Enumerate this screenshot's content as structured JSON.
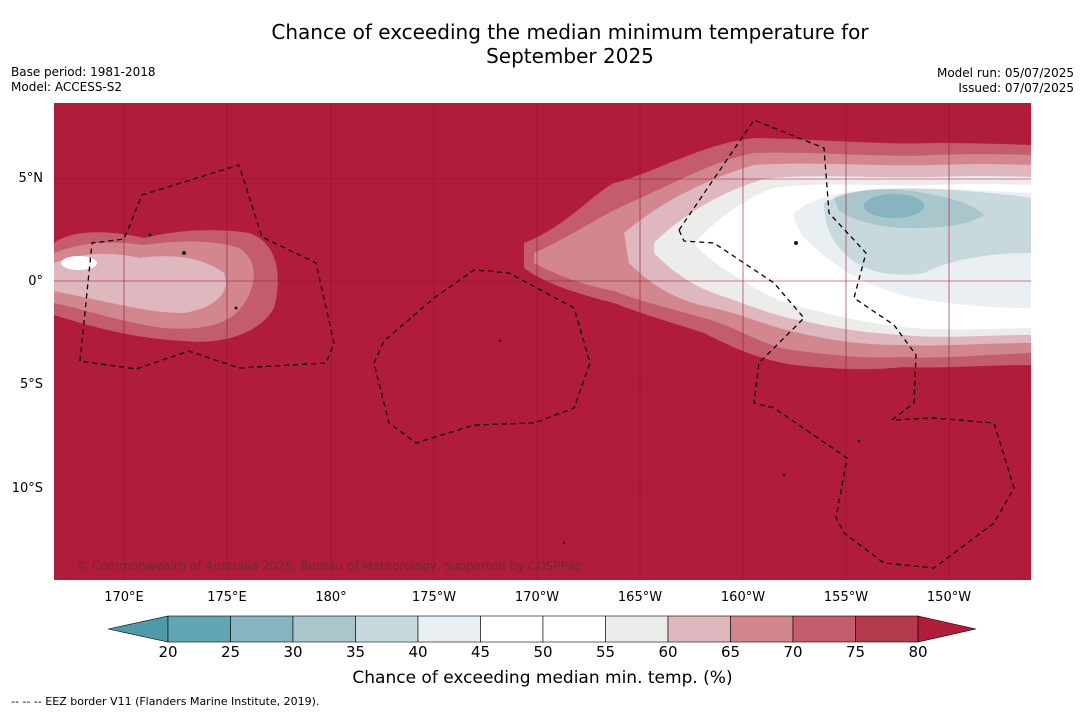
{
  "title_line1": "Chance of exceeding the median minimum temperature for",
  "title_line2": "September 2025",
  "base_period": "Base period: 1981-2018",
  "model": "Model: ACCESS-S2",
  "model_run": "Model run: 05/07/2025",
  "issued": "Issued: 07/07/2025",
  "lat_labels": [
    "5°N",
    "0°",
    "5°S",
    "10°S"
  ],
  "lon_labels": [
    "170°E",
    "175°E",
    "180°",
    "175°W",
    "170°W",
    "165°W",
    "160°W",
    "155°W",
    "150°W"
  ],
  "copyright": "© Commonwealth of Australia 2025, Bureau of Meteorology, supported by COSPPac",
  "colorbar": {
    "ticks": [
      "20",
      "25",
      "30",
      "35",
      "40",
      "45",
      "50",
      "55",
      "60",
      "65",
      "70",
      "75",
      "80"
    ],
    "colors": [
      "#63a6b3",
      "#86b4c0",
      "#a8c6cc",
      "#c8d9de",
      "#e9eff2",
      "#ffffff",
      "#ffffff",
      "#ececeb",
      "#dfb7bf",
      "#d2878f",
      "#c35c6b",
      "#b5394d"
    ],
    "under_color": "#4f9aa8",
    "over_color": "#b01c3a",
    "label": "Chance of exceeding median min. temp. (%)"
  },
  "legend_note": "--  --  -- EEZ border V11 (Flanders Marine Institute, 2019).",
  "colors": {
    "background_red": "#b01c3a"
  }
}
